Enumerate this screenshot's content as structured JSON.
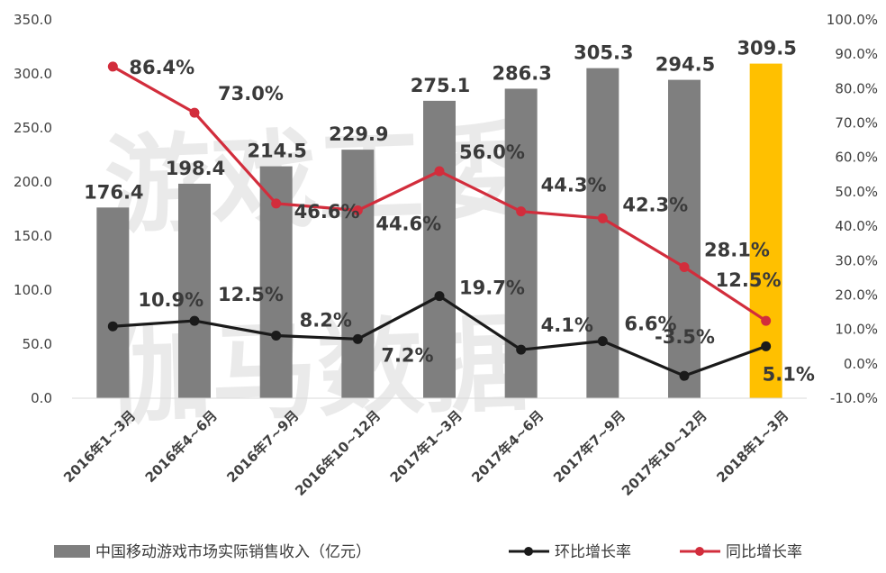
{
  "chart_data": {
    "type": "bar",
    "categories": [
      "2016年1~3月",
      "2016年4~6月",
      "2016年7~9月",
      "2016年10~12月",
      "2017年1~3月",
      "2017年4~6月",
      "2017年7~9月",
      "2017年10~12月",
      "2018年1~3月"
    ],
    "bar_series": {
      "name": "中国移动游戏市场实际销售收入（亿元）",
      "values": [
        176.4,
        198.4,
        214.5,
        229.9,
        275.1,
        286.3,
        305.3,
        294.5,
        309.5
      ],
      "labels": [
        "176.4",
        "198.4",
        "214.5",
        "229.9",
        "275.1",
        "286.3",
        "305.3",
        "294.5",
        "309.5"
      ],
      "color": "#7f7f7f",
      "highlight_color": "#ffc000",
      "highlight_index": 8
    },
    "line_series": [
      {
        "name": "环比增长率",
        "values": [
          10.9,
          12.5,
          8.2,
          7.2,
          19.7,
          4.1,
          6.6,
          -3.5,
          5.1
        ],
        "labels": [
          "10.9%",
          "12.5%",
          "8.2%",
          "7.2%",
          "19.7%",
          "4.1%",
          "6.6%",
          "-3.5%",
          "5.1%"
        ],
        "color": "#1a1a1a"
      },
      {
        "name": "同比增长率",
        "values": [
          86.4,
          73.0,
          46.6,
          44.6,
          56.0,
          44.3,
          42.3,
          28.1,
          12.5
        ],
        "labels": [
          "86.4%",
          "73.0%",
          "46.6%",
          "44.6%",
          "56.0%",
          "44.3%",
          "42.3%",
          "28.1%",
          "12.5%"
        ],
        "color": "#d22d3c"
      }
    ],
    "y_left": {
      "ylim": [
        0,
        350
      ],
      "ticks": [
        "0.0",
        "50.0",
        "100.0",
        "150.0",
        "200.0",
        "250.0",
        "300.0",
        "350.0"
      ]
    },
    "y_right": {
      "ylim": [
        -10,
        100
      ],
      "ticks": [
        "-10.0%",
        "0.0%",
        "10.0%",
        "20.0%",
        "30.0%",
        "40.0%",
        "50.0%",
        "60.0%",
        "70.0%",
        "80.0%",
        "90.0%",
        "100.0%"
      ]
    },
    "watermark": [
      "游戏工委",
      "伽马数据"
    ],
    "grid": false,
    "legend_position": "bottom"
  }
}
